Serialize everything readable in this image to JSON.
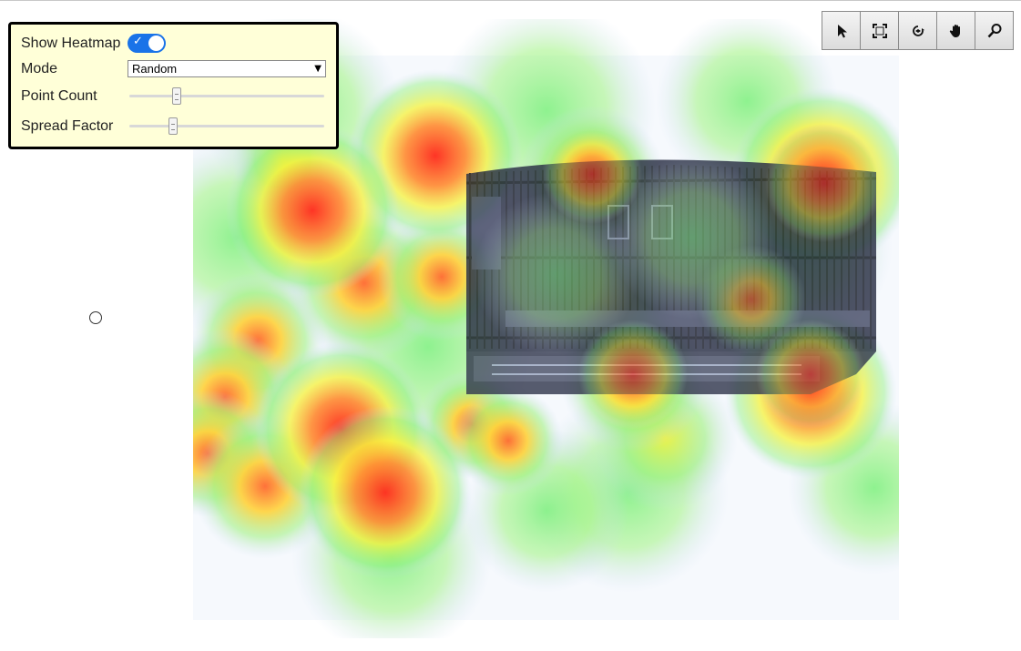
{
  "panel": {
    "show_heatmap_label": "Show Heatmap",
    "show_heatmap_on": true,
    "mode_label": "Mode",
    "mode_value": "Random",
    "point_count_label": "Point Count",
    "point_count_fraction": 0.23,
    "spread_factor_label": "Spread Factor",
    "spread_factor_fraction": 0.21
  },
  "toolbar": {
    "tools": [
      "pointer-icon",
      "fit-extents-icon",
      "orbit-icon",
      "pan-hand-icon",
      "zoom-icon"
    ]
  },
  "colors": {
    "panel_bg": "#ffffd8",
    "toggle_on": "#1a73e8",
    "heat_hot": "#ff2a1a",
    "heat_warm": "#ffff3a",
    "heat_cool": "#7cf07c",
    "model_dark": "#2a2f45"
  }
}
